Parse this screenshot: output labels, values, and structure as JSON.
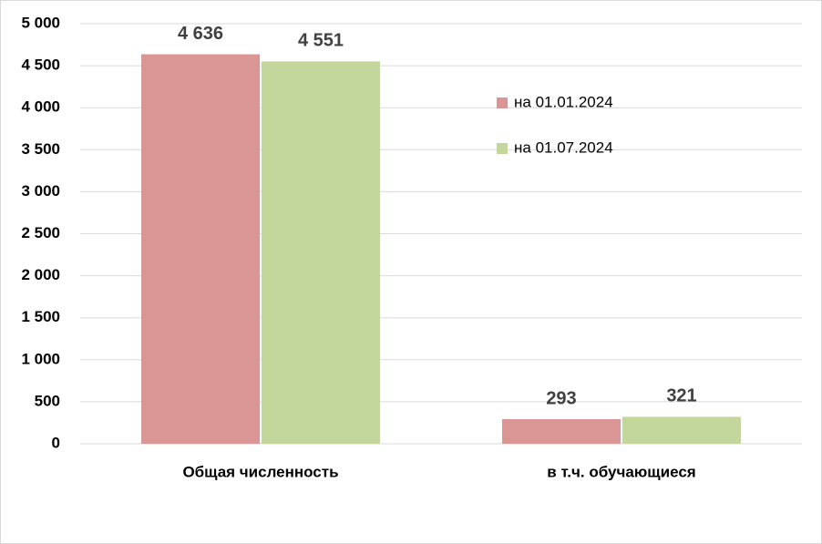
{
  "chart_data": {
    "type": "bar",
    "categories": [
      "Общая численность",
      "в т.ч. обучающиеся"
    ],
    "series": [
      {
        "name": "на 01.01.2024",
        "color": "#d99694",
        "values": [
          4636,
          293
        ],
        "value_labels": [
          "4 636",
          "293"
        ]
      },
      {
        "name": "на 01.07.2024",
        "color": "#c3d69b",
        "values": [
          4551,
          321
        ],
        "value_labels": [
          "4 551",
          "321"
        ]
      }
    ],
    "ylim": [
      0,
      5000
    ],
    "yticks": [
      0,
      500,
      {
        "value": 1000,
        "label": "1 000"
      },
      {
        "value": 1500,
        "label": "1 500"
      },
      {
        "value": 2000,
        "label": "2 000"
      },
      {
        "value": 2500,
        "label": "2 500"
      },
      {
        "value": 3000,
        "label": "3 000"
      },
      {
        "value": 3500,
        "label": "3 500"
      },
      {
        "value": 4000,
        "label": "4 000"
      },
      {
        "value": 4500,
        "label": "4 500"
      },
      {
        "value": 5000,
        "label": "5 000"
      }
    ],
    "grid": true,
    "legend_position": "right"
  }
}
